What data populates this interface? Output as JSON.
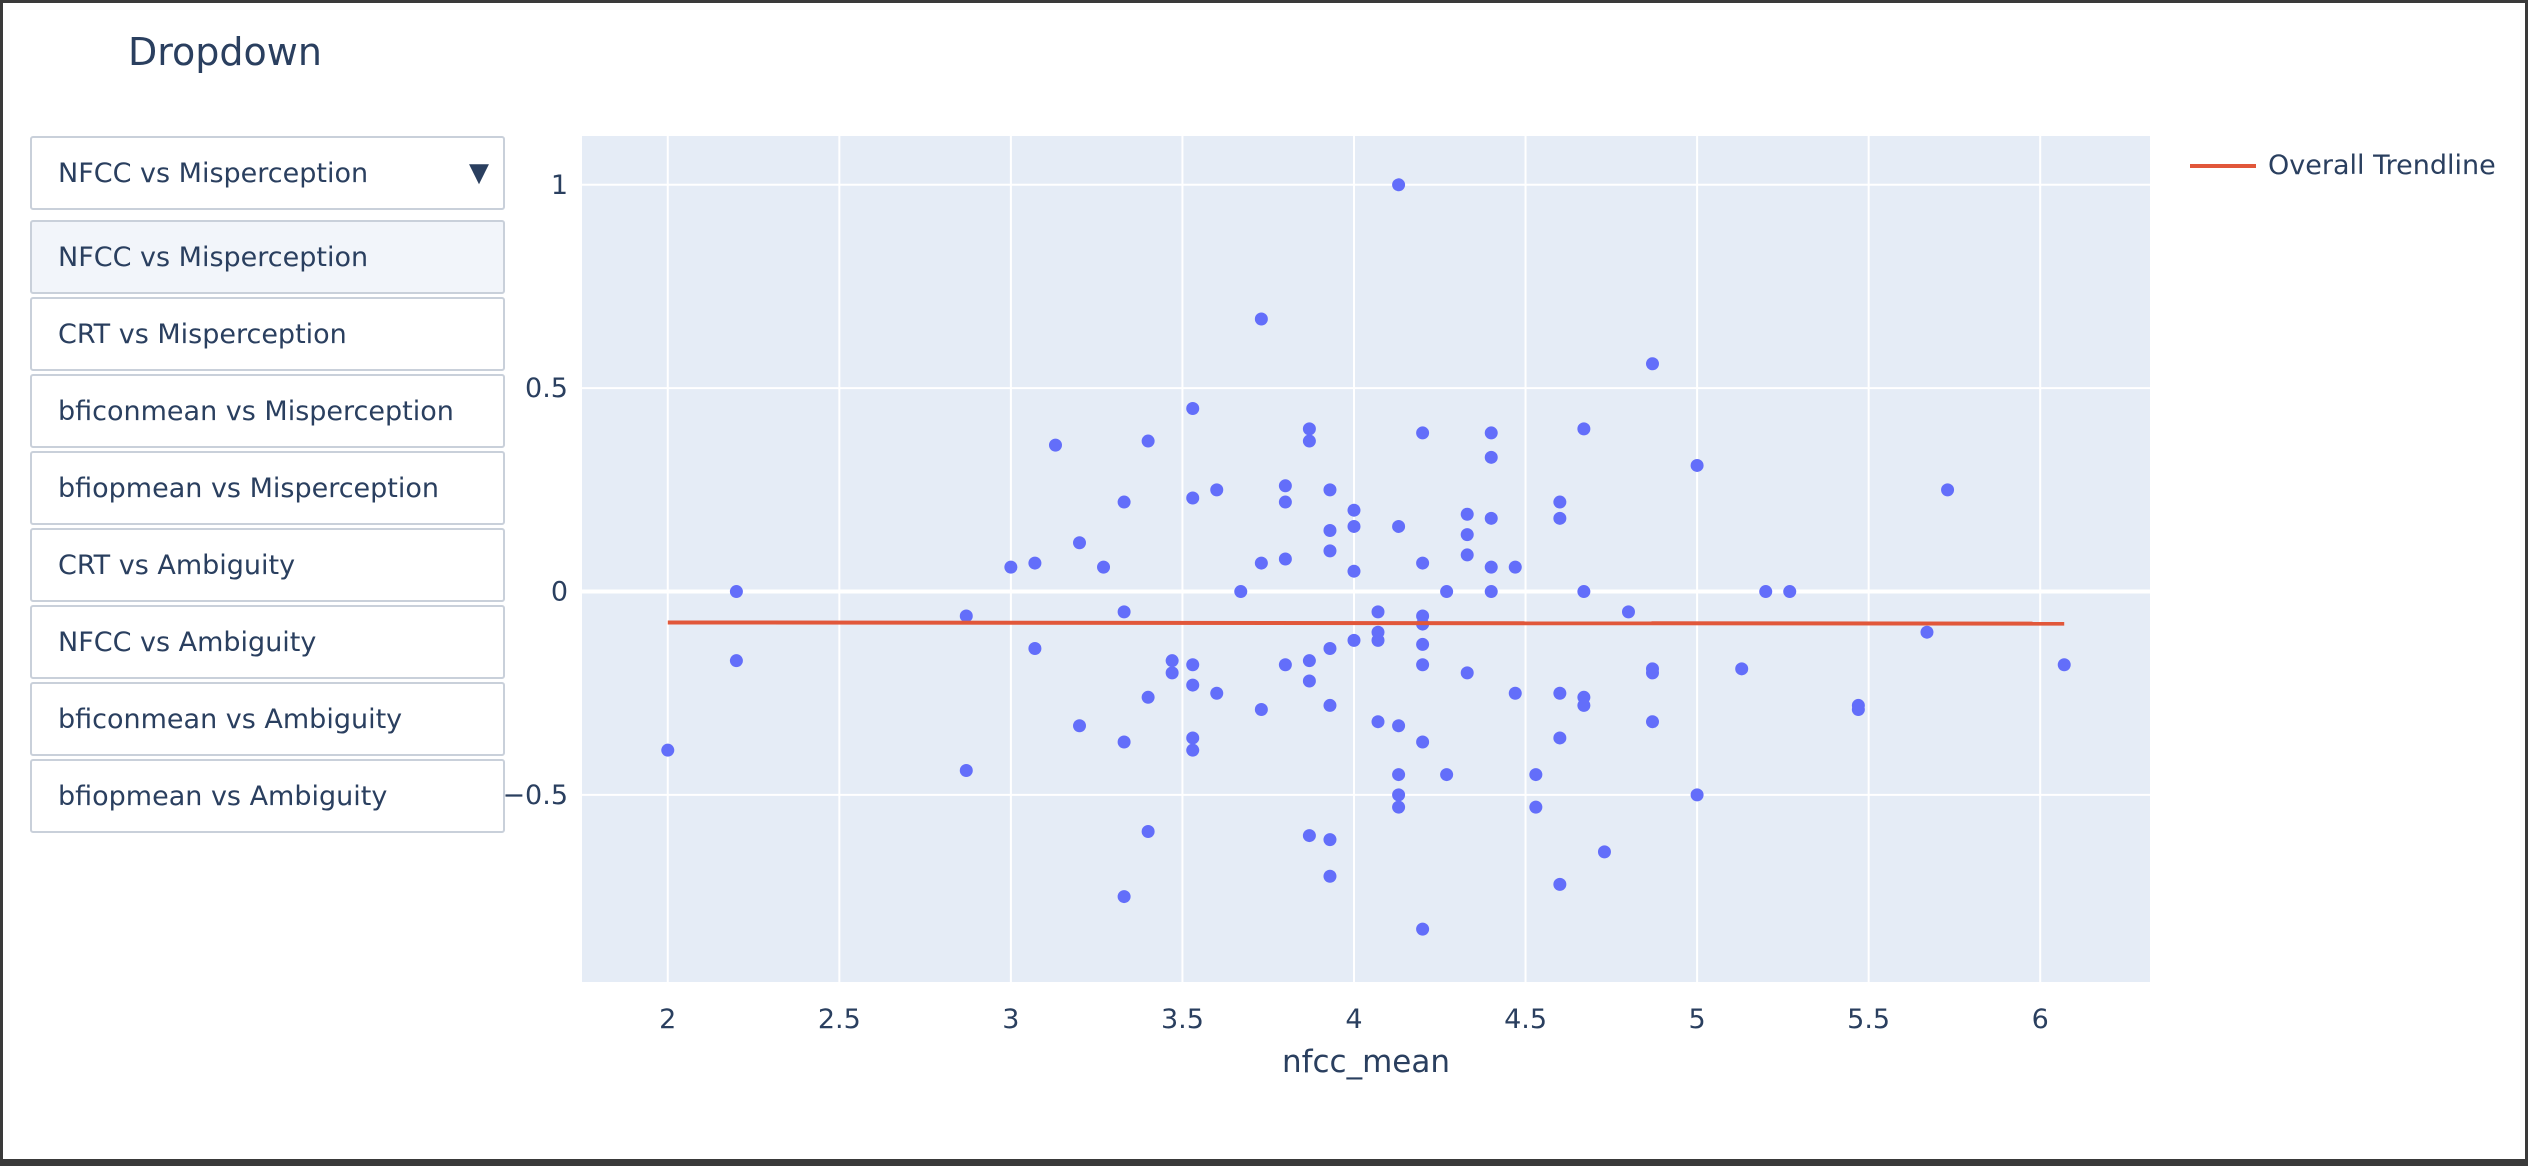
{
  "title": "Dropdown",
  "dropdown": {
    "selected": "NFCC vs Misperception",
    "options": [
      "NFCC vs Misperception",
      "CRT vs Misperception",
      "bficonmean vs Misperception",
      "bfiopmean vs Misperception",
      "CRT vs Ambiguity",
      "NFCC vs Ambiguity",
      "bficonmean vs Ambiguity",
      "bfiopmean vs Ambiguity"
    ]
  },
  "legend": {
    "trendline_label": "Overall Trendline"
  },
  "colors": {
    "point": "#636efa",
    "trendline": "#e1573a",
    "plot_bg": "#e5ecf6",
    "grid": "#ffffff",
    "text": "#2a3f5f"
  },
  "chart_data": {
    "type": "scatter",
    "title": "Dropdown",
    "xlabel": "nfcc_mean",
    "ylabel": "",
    "xlim": [
      1.75,
      6.32
    ],
    "ylim": [
      -0.96,
      1.12
    ],
    "xticks": [
      "2",
      "2.5",
      "3",
      "3.5",
      "4",
      "4.5",
      "5",
      "5.5",
      "6"
    ],
    "xtick_values": [
      2,
      2.5,
      3,
      3.5,
      4,
      4.5,
      5,
      5.5,
      6
    ],
    "yticks": [
      "−0.5",
      "0",
      "0.5",
      "1"
    ],
    "ytick_values": [
      -0.5,
      0,
      0.5,
      1
    ],
    "grid": true,
    "legend_position": "top-right",
    "series": [
      {
        "type": "scatter",
        "points": [
          [
            2.0,
            -0.39
          ],
          [
            2.2,
            0.0
          ],
          [
            2.2,
            -0.17
          ],
          [
            2.87,
            -0.06
          ],
          [
            2.87,
            -0.44
          ],
          [
            3.0,
            0.06
          ],
          [
            3.07,
            0.07
          ],
          [
            3.07,
            -0.14
          ],
          [
            3.13,
            0.36
          ],
          [
            3.2,
            0.12
          ],
          [
            3.2,
            -0.33
          ],
          [
            3.27,
            0.06
          ],
          [
            3.33,
            0.22
          ],
          [
            3.33,
            -0.05
          ],
          [
            3.33,
            -0.37
          ],
          [
            3.33,
            -0.75
          ],
          [
            3.4,
            0.37
          ],
          [
            3.4,
            -0.26
          ],
          [
            3.4,
            -0.59
          ],
          [
            3.47,
            -0.17
          ],
          [
            3.47,
            -0.2
          ],
          [
            3.53,
            0.45
          ],
          [
            3.53,
            0.23
          ],
          [
            3.53,
            -0.18
          ],
          [
            3.53,
            -0.23
          ],
          [
            3.53,
            -0.36
          ],
          [
            3.53,
            -0.39
          ],
          [
            3.6,
            0.25
          ],
          [
            3.6,
            -0.25
          ],
          [
            3.67,
            0.0
          ],
          [
            3.73,
            0.67
          ],
          [
            3.73,
            0.07
          ],
          [
            3.73,
            -0.29
          ],
          [
            3.8,
            0.26
          ],
          [
            3.8,
            0.22
          ],
          [
            3.8,
            0.08
          ],
          [
            3.8,
            -0.18
          ],
          [
            3.87,
            0.4
          ],
          [
            3.87,
            0.37
          ],
          [
            3.87,
            -0.17
          ],
          [
            3.87,
            -0.22
          ],
          [
            3.87,
            -0.6
          ],
          [
            3.93,
            0.25
          ],
          [
            3.93,
            0.15
          ],
          [
            3.93,
            0.1
          ],
          [
            3.93,
            -0.14
          ],
          [
            3.93,
            -0.28
          ],
          [
            3.93,
            -0.61
          ],
          [
            3.93,
            -0.7
          ],
          [
            4.0,
            0.2
          ],
          [
            4.0,
            0.16
          ],
          [
            4.0,
            0.05
          ],
          [
            4.0,
            -0.12
          ],
          [
            4.07,
            -0.05
          ],
          [
            4.07,
            -0.1
          ],
          [
            4.07,
            -0.12
          ],
          [
            4.07,
            -0.32
          ],
          [
            4.13,
            1.0
          ],
          [
            4.13,
            0.16
          ],
          [
            4.13,
            -0.33
          ],
          [
            4.13,
            -0.45
          ],
          [
            4.13,
            -0.5
          ],
          [
            4.13,
            -0.53
          ],
          [
            4.2,
            0.39
          ],
          [
            4.2,
            0.07
          ],
          [
            4.2,
            -0.06
          ],
          [
            4.2,
            -0.08
          ],
          [
            4.2,
            -0.13
          ],
          [
            4.2,
            -0.18
          ],
          [
            4.2,
            -0.37
          ],
          [
            4.2,
            -0.83
          ],
          [
            4.27,
            0.0
          ],
          [
            4.27,
            -0.45
          ],
          [
            4.33,
            0.19
          ],
          [
            4.33,
            0.14
          ],
          [
            4.33,
            0.09
          ],
          [
            4.33,
            -0.2
          ],
          [
            4.4,
            0.39
          ],
          [
            4.4,
            0.33
          ],
          [
            4.4,
            0.18
          ],
          [
            4.4,
            0.06
          ],
          [
            4.4,
            0.0
          ],
          [
            4.47,
            0.06
          ],
          [
            4.47,
            -0.25
          ],
          [
            4.53,
            -0.45
          ],
          [
            4.53,
            -0.53
          ],
          [
            4.6,
            0.22
          ],
          [
            4.6,
            0.18
          ],
          [
            4.6,
            -0.25
          ],
          [
            4.6,
            -0.36
          ],
          [
            4.6,
            -0.72
          ],
          [
            4.67,
            0.4
          ],
          [
            4.67,
            0.0
          ],
          [
            4.67,
            -0.26
          ],
          [
            4.67,
            -0.28
          ],
          [
            4.73,
            -0.64
          ],
          [
            4.8,
            -0.05
          ],
          [
            4.87,
            0.56
          ],
          [
            4.87,
            -0.19
          ],
          [
            4.87,
            -0.2
          ],
          [
            4.87,
            -0.32
          ],
          [
            5.0,
            0.31
          ],
          [
            5.0,
            -0.5
          ],
          [
            5.13,
            -0.19
          ],
          [
            5.2,
            0.0
          ],
          [
            5.27,
            0.0
          ],
          [
            5.47,
            -0.28
          ],
          [
            5.47,
            -0.29
          ],
          [
            5.67,
            -0.1
          ],
          [
            5.73,
            0.25
          ],
          [
            6.07,
            -0.18
          ]
        ]
      },
      {
        "name": "Overall Trendline",
        "type": "line",
        "x": [
          2.0,
          6.07
        ],
        "y": [
          -0.076,
          -0.079
        ]
      }
    ]
  }
}
